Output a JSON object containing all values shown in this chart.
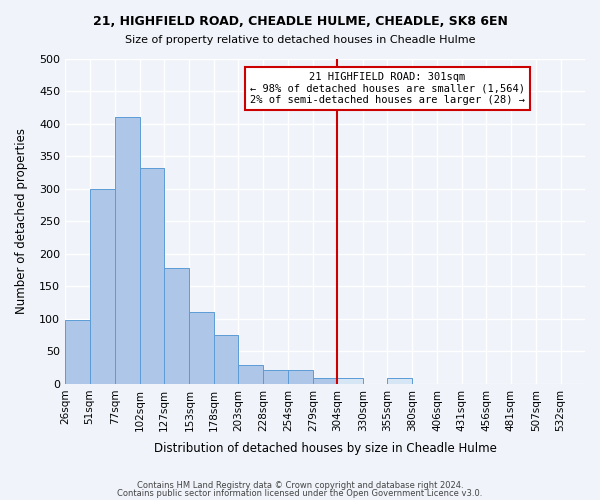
{
  "title1": "21, HIGHFIELD ROAD, CHEADLE HULME, CHEADLE, SK8 6EN",
  "title2": "Size of property relative to detached houses in Cheadle Hulme",
  "xlabel": "Distribution of detached houses by size in Cheadle Hulme",
  "ylabel": "Number of detached properties",
  "bar_left_edges": [
    26,
    51,
    77,
    102,
    127,
    153,
    178,
    203,
    228,
    254,
    279,
    304,
    330,
    355,
    380,
    406,
    431,
    456,
    481,
    507
  ],
  "bar_widths": [
    25,
    26,
    25,
    25,
    26,
    25,
    25,
    25,
    26,
    25,
    25,
    26,
    25,
    25,
    26,
    25,
    25,
    25,
    26,
    25
  ],
  "bar_heights": [
    99,
    300,
    410,
    333,
    178,
    111,
    76,
    29,
    21,
    21,
    9,
    9,
    0,
    9,
    0,
    0,
    0,
    0,
    0,
    0
  ],
  "bar_color_left": "#aec6e8",
  "bar_color_right": "#d6e6f5",
  "property_line_x": 304,
  "x_tick_labels": [
    "26sqm",
    "51sqm",
    "77sqm",
    "102sqm",
    "127sqm",
    "153sqm",
    "178sqm",
    "203sqm",
    "228sqm",
    "254sqm",
    "279sqm",
    "304sqm",
    "330sqm",
    "355sqm",
    "380sqm",
    "406sqm",
    "431sqm",
    "456sqm",
    "481sqm",
    "507sqm",
    "532sqm"
  ],
  "x_tick_positions": [
    26,
    51,
    77,
    102,
    127,
    153,
    178,
    203,
    228,
    254,
    279,
    304,
    330,
    355,
    380,
    406,
    431,
    456,
    481,
    507,
    532
  ],
  "ylim": [
    0,
    500
  ],
  "yticks": [
    0,
    50,
    100,
    150,
    200,
    250,
    300,
    350,
    400,
    450,
    500
  ],
  "annotation_title": "21 HIGHFIELD ROAD: 301sqm",
  "annotation_line1": "← 98% of detached houses are smaller (1,564)",
  "annotation_line2": "2% of semi-detached houses are larger (28) →",
  "footer1": "Contains HM Land Registry data © Crown copyright and database right 2024.",
  "footer2": "Contains public sector information licensed under the Open Government Licence v3.0.",
  "bg_color": "#f0f4fa",
  "grid_color": "#ffffff",
  "bar_edge_color": "#5b9bd5",
  "box_border_color": "#cc0000",
  "vline_color": "#cc0000"
}
